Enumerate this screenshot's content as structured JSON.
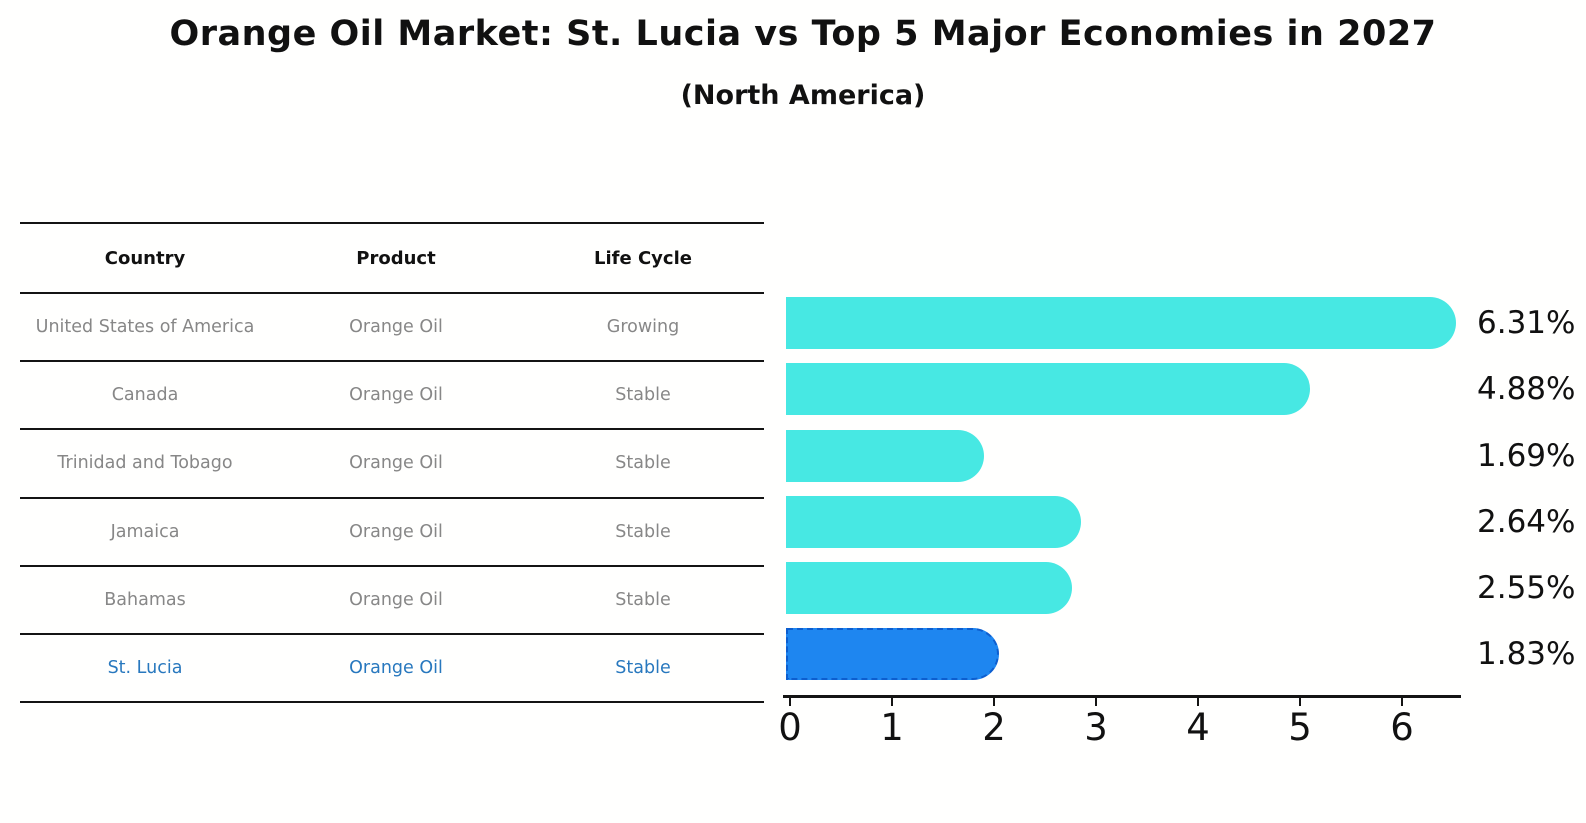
{
  "title": "Orange Oil Market: St. Lucia vs Top 5 Major Economies in 2027",
  "subtitle": "(North America)",
  "table": {
    "headers": [
      "Country",
      "Product",
      "Life Cycle"
    ],
    "rows": [
      {
        "country": "United States of America",
        "product": "Orange Oil",
        "life_cycle": "Growing",
        "highlight": false
      },
      {
        "country": "Canada",
        "product": "Orange Oil",
        "life_cycle": "Stable",
        "highlight": false
      },
      {
        "country": "Trinidad and Tobago",
        "product": "Orange Oil",
        "life_cycle": "Stable",
        "highlight": false
      },
      {
        "country": "Jamaica",
        "product": "Orange Oil",
        "life_cycle": "Stable",
        "highlight": false
      },
      {
        "country": "Bahamas",
        "product": "Orange Oil",
        "life_cycle": "Stable",
        "highlight": false
      },
      {
        "country": "St. Lucia",
        "product": "Orange Oil",
        "life_cycle": "Stable",
        "highlight": true
      }
    ]
  },
  "chart_data": {
    "type": "bar",
    "orientation": "horizontal",
    "title": "Orange Oil Market: St. Lucia vs Top 5 Major Economies in 2027",
    "subtitle": "(North America)",
    "categories": [
      "United States of America",
      "Canada",
      "Trinidad and Tobago",
      "Jamaica",
      "Bahamas",
      "St. Lucia"
    ],
    "values": [
      6.31,
      4.88,
      1.69,
      2.64,
      2.55,
      1.83
    ],
    "value_labels": [
      "6.31%",
      "4.88%",
      "1.69%",
      "2.64%",
      "2.55%",
      "1.83%"
    ],
    "x_ticks": [
      "0",
      "1",
      "2",
      "3",
      "4",
      "5",
      "6"
    ],
    "xlim": [
      0,
      6.6
    ],
    "grid": false,
    "legend": "none",
    "highlight_index": 5,
    "bar_color": "#47e8e3",
    "highlight_bar_color": "#1e86f0",
    "highlight_border_color": "#0d5ecf",
    "highlight_text_color": "#2878be",
    "row_text_color": "#878787",
    "axis_color": "#141414"
  }
}
